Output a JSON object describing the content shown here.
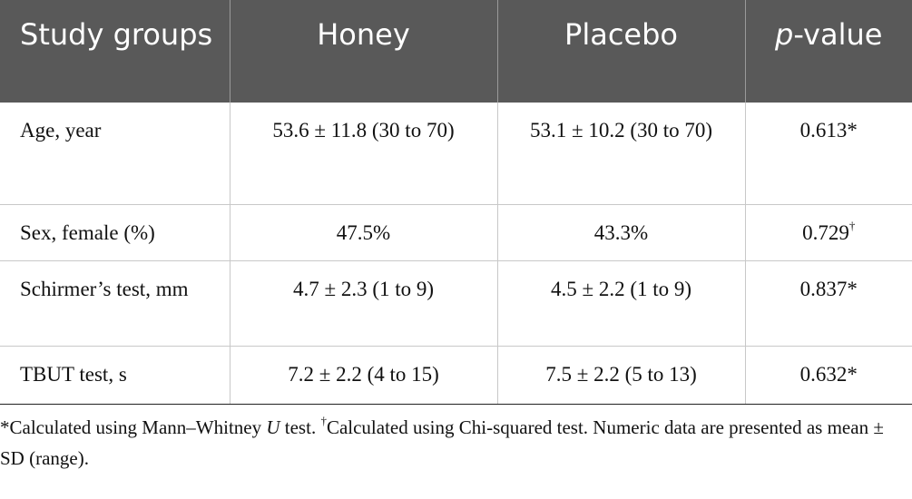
{
  "table": {
    "headers": {
      "study_groups": "Study groups",
      "honey": "Honey",
      "placebo": "Placebo",
      "pvalue_italic": "p",
      "pvalue_rest": "-value"
    },
    "rows": [
      {
        "label": "Age, year",
        "honey": "53.6 ± 11.8 (30 to 70)",
        "placebo": "53.1 ± 10.2 (30 to 70)",
        "p": "0.613*",
        "p_mark": ""
      },
      {
        "label": "Sex, female (%)",
        "honey": "47.5%",
        "placebo": "43.3%",
        "p": "0.729",
        "p_mark": "†"
      },
      {
        "label": "Schirmer’s test, mm",
        "honey": "4.7 ± 2.3 (1 to 9)",
        "placebo": "4.5 ± 2.2 (1 to 9)",
        "p": "0.837*",
        "p_mark": ""
      },
      {
        "label": "TBUT test, s",
        "honey": "7.2 ± 2.2 (4 to 15)",
        "placebo": "7.5 ± 2.2 (5 to 13)",
        "p": "0.632*",
        "p_mark": ""
      }
    ]
  },
  "footnote": {
    "part1": "*Calculated using Mann–Whitney ",
    "u": "U",
    "part2": " test. ",
    "dagger": "†",
    "part3": "Calculated using Chi-squared test. Numeric data are presented as mean ± SD (range)."
  },
  "colors": {
    "header_bg": "#595959",
    "header_text": "#ffffff",
    "grid": "#c8c8c8"
  }
}
